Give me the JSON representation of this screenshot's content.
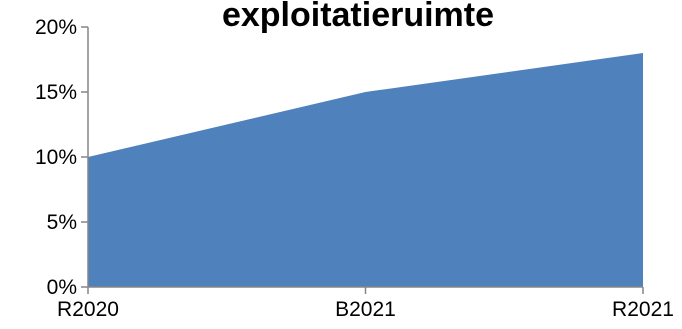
{
  "chart_data": {
    "type": "area",
    "title": "exploitatieruimte",
    "xlabel": "",
    "ylabel": "",
    "categories": [
      "R2020",
      "B2021",
      "R2021"
    ],
    "series": [
      {
        "values": [
          10,
          15,
          18
        ]
      }
    ],
    "yticks": [
      "0%",
      "5%",
      "10%",
      "15%",
      "20%"
    ],
    "ylim": [
      0,
      20
    ],
    "grid": false,
    "legend": "none",
    "fill_color": "#4f81bd"
  }
}
